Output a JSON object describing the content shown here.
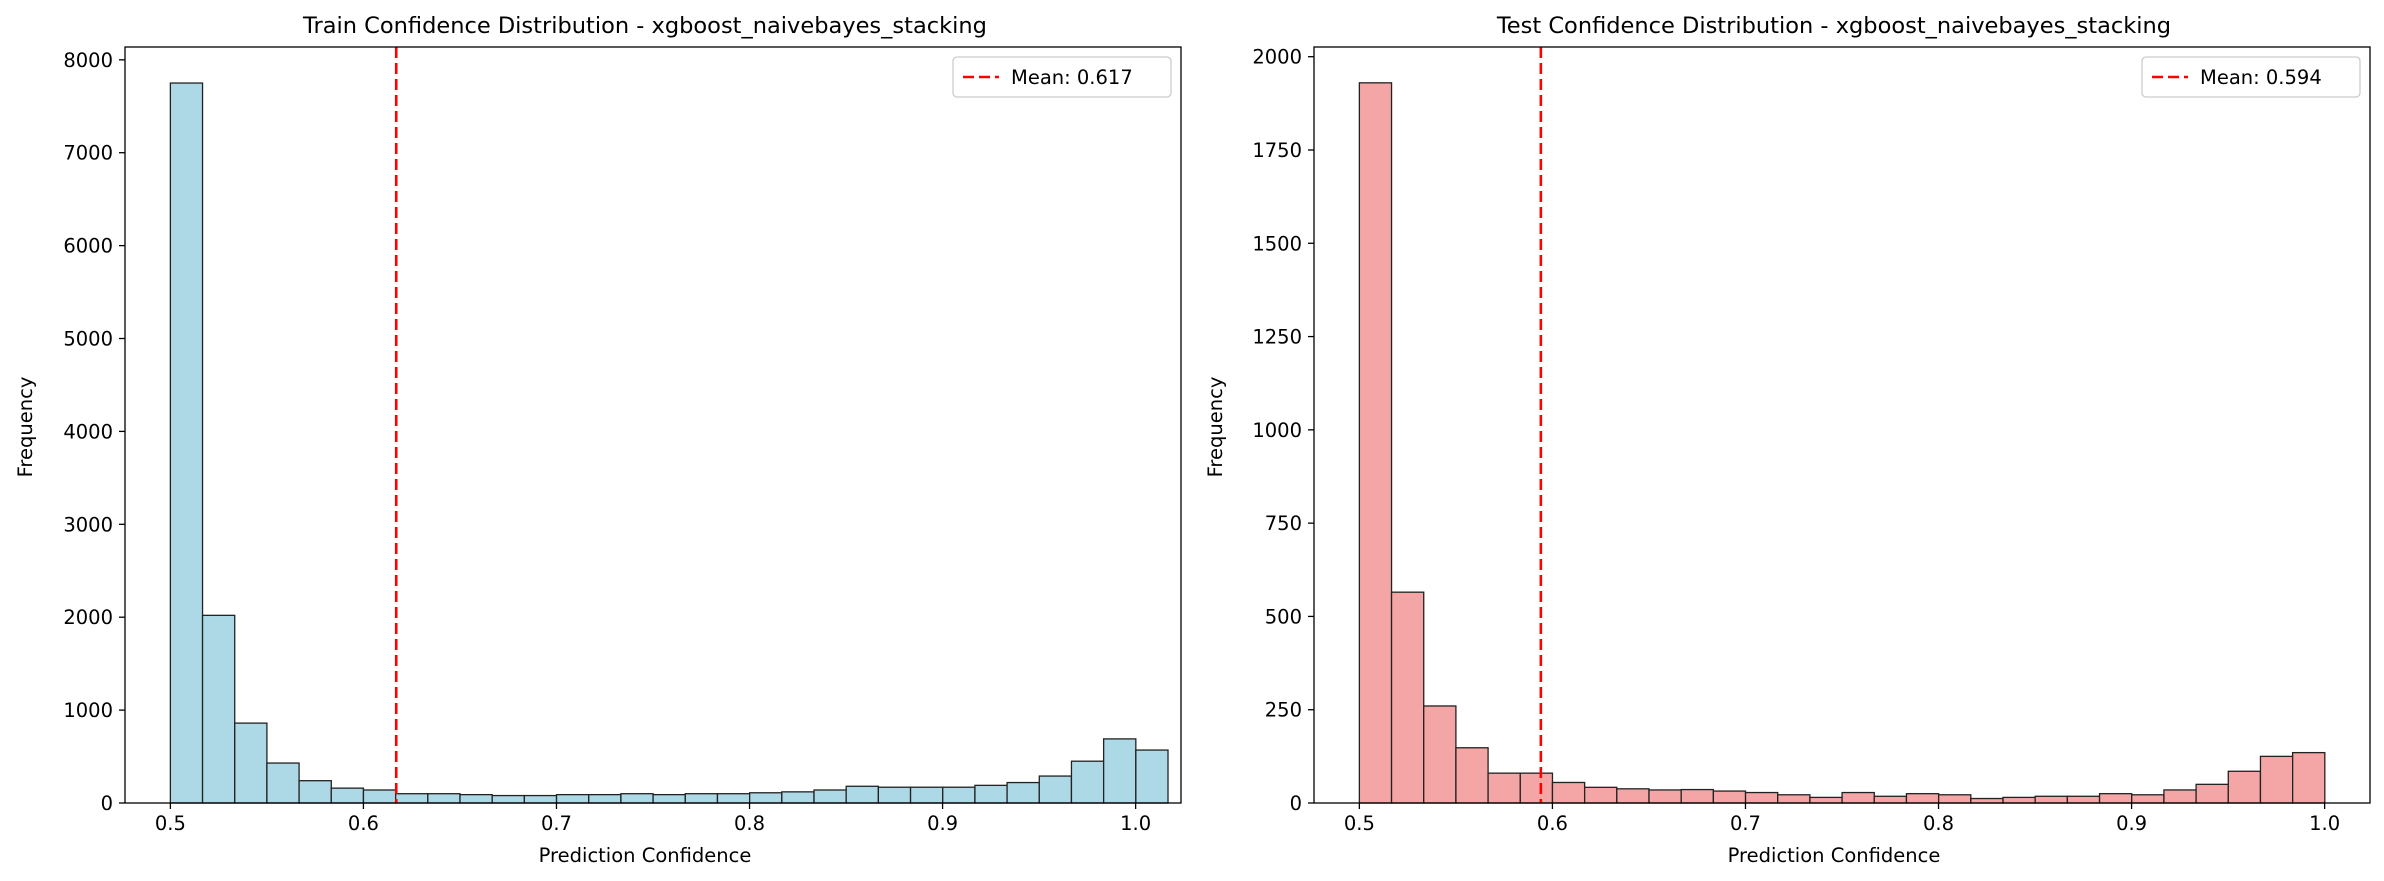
{
  "chart_data": [
    {
      "type": "bar",
      "title": "Train Confidence Distribution - xgboost_naivebayes_stacking",
      "xlabel": "Prediction Confidence",
      "ylabel": "Frequency",
      "bin_start": 0.5,
      "bin_width": 0.01667,
      "values": [
        7750,
        2020,
        860,
        430,
        240,
        160,
        140,
        100,
        100,
        90,
        80,
        80,
        90,
        90,
        100,
        90,
        100,
        100,
        110,
        120,
        140,
        180,
        170,
        170,
        170,
        190,
        220,
        290,
        450,
        690,
        570
      ],
      "xlim": [
        0.4765,
        1.0235
      ],
      "ylim": [
        0,
        8138
      ],
      "xticks": [
        0.5,
        0.6,
        0.7,
        0.8,
        0.9,
        1.0
      ],
      "xtick_labels": [
        "0.5",
        "0.6",
        "0.7",
        "0.8",
        "0.9",
        "1.0"
      ],
      "yticks": [
        0,
        1000,
        2000,
        3000,
        4000,
        5000,
        6000,
        7000,
        8000
      ],
      "ytick_labels": [
        "0",
        "1000",
        "2000",
        "3000",
        "4000",
        "5000",
        "6000",
        "7000",
        "8000"
      ],
      "bar_color": "#add8e6",
      "mean": 0.617,
      "mean_label": "Mean: 0.617",
      "mean_color": "#ff0000",
      "legend_position": "top-right",
      "grid": false
    },
    {
      "type": "bar",
      "title": "Test Confidence Distribution - xgboost_naivebayes_stacking",
      "xlabel": "Prediction Confidence",
      "ylabel": "Frequency",
      "bin_start": 0.5,
      "bin_width": 0.01667,
      "values": [
        1930,
        565,
        260,
        148,
        80,
        80,
        55,
        42,
        38,
        35,
        36,
        32,
        28,
        22,
        15,
        28,
        18,
        25,
        22,
        12,
        15,
        18,
        18,
        25,
        22,
        35,
        50,
        85,
        125,
        135
      ],
      "xlim": [
        0.4765,
        1.0235
      ],
      "ylim": [
        0,
        2026
      ],
      "xticks": [
        0.5,
        0.6,
        0.7,
        0.8,
        0.9,
        1.0
      ],
      "xtick_labels": [
        "0.5",
        "0.6",
        "0.7",
        "0.8",
        "0.9",
        "1.0"
      ],
      "yticks": [
        0,
        250,
        500,
        750,
        1000,
        1250,
        1500,
        1750,
        2000
      ],
      "ytick_labels": [
        "0",
        "250",
        "500",
        "750",
        "1000",
        "1250",
        "1500",
        "1750",
        "2000"
      ],
      "bar_color": "#f4a6a6",
      "mean": 0.594,
      "mean_label": "Mean: 0.594",
      "mean_color": "#ff0000",
      "legend_position": "top-right",
      "grid": false
    }
  ]
}
